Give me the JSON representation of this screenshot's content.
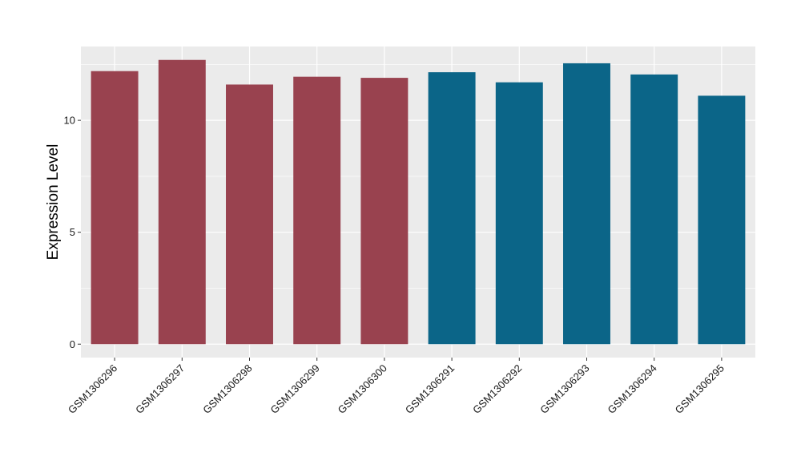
{
  "chart_data": {
    "type": "bar",
    "ylabel": "Expression Level",
    "xlabel": "",
    "ylim": [
      -0.6,
      13.3
    ],
    "yticks": [
      0,
      5,
      10
    ],
    "grid": true,
    "categories": [
      "GSM1306296",
      "GSM1306297",
      "GSM1306298",
      "GSM1306299",
      "GSM1306300",
      "GSM1306291",
      "GSM1306292",
      "GSM1306293",
      "GSM1306294",
      "GSM1306295"
    ],
    "values": [
      12.2,
      12.7,
      11.6,
      11.95,
      11.9,
      12.15,
      11.7,
      12.55,
      12.05,
      11.1
    ],
    "bar_colors": [
      "#99424f",
      "#99424f",
      "#99424f",
      "#99424f",
      "#99424f",
      "#0b6588",
      "#0b6588",
      "#0b6588",
      "#0b6588",
      "#0b6588"
    ],
    "panel_background": "#ebebeb",
    "grid_color": "#ffffff"
  }
}
